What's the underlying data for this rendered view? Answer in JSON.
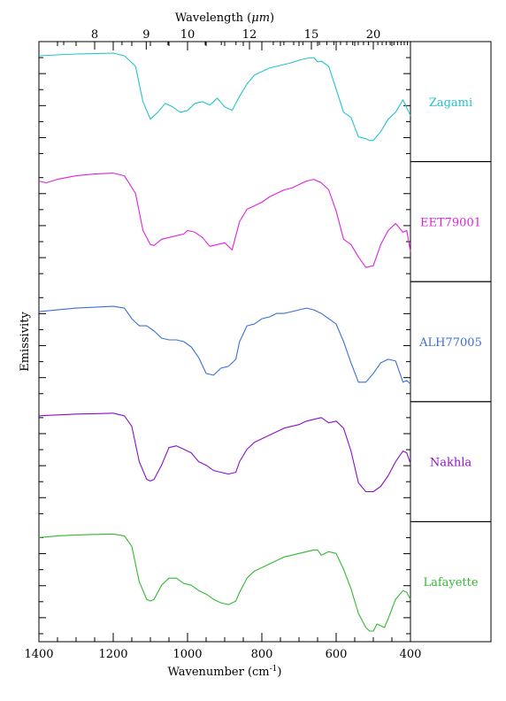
{
  "chart_data": {
    "type": "line",
    "xlabel": "Wavenumber (cm",
    "xlabel_sup": "-1",
    "xlabel_close": ")",
    "ylabel": "Emissivity",
    "top_axis_label": "Wavelength (",
    "top_axis_label_mu": "μm",
    "top_axis_label_close": ")",
    "xlim": [
      1400,
      400
    ],
    "x_ticks": [
      1400,
      1200,
      1000,
      800,
      600,
      400
    ],
    "x_tick_labels": [
      "1400",
      "1200",
      "1000",
      "800",
      "600",
      "400"
    ],
    "top_ticks_um": [
      8,
      9,
      10,
      12,
      15,
      20
    ],
    "top_tick_labels": [
      "8",
      "9",
      "10",
      "12",
      "15",
      "20"
    ],
    "series": [
      {
        "name": "Zagami",
        "color": "#22c4cc",
        "x": [
          1400,
          1350,
          1300,
          1250,
          1200,
          1170,
          1140,
          1120,
          1100,
          1080,
          1060,
          1040,
          1020,
          1000,
          980,
          960,
          940,
          920,
          900,
          880,
          860,
          840,
          820,
          800,
          780,
          760,
          740,
          720,
          700,
          680,
          660,
          650,
          640,
          620,
          600,
          580,
          560,
          540,
          520,
          510,
          500,
          480,
          460,
          440,
          420,
          400
        ],
        "y": [
          0.96,
          0.965,
          0.97,
          0.972,
          0.975,
          0.96,
          0.9,
          0.7,
          0.6,
          0.64,
          0.69,
          0.67,
          0.64,
          0.65,
          0.69,
          0.7,
          0.68,
          0.72,
          0.67,
          0.65,
          0.73,
          0.8,
          0.85,
          0.87,
          0.89,
          0.9,
          0.91,
          0.92,
          0.935,
          0.945,
          0.95,
          0.925,
          0.93,
          0.9,
          0.77,
          0.64,
          0.61,
          0.5,
          0.49,
          0.48,
          0.48,
          0.53,
          0.6,
          0.64,
          0.71,
          0.62
        ]
      },
      {
        "name": "EET79001",
        "color": "#dd22dd",
        "x": [
          1400,
          1380,
          1350,
          1300,
          1250,
          1200,
          1170,
          1140,
          1120,
          1100,
          1090,
          1070,
          1050,
          1030,
          1010,
          1000,
          980,
          960,
          940,
          920,
          900,
          880,
          860,
          840,
          820,
          800,
          780,
          760,
          740,
          720,
          700,
          680,
          660,
          640,
          620,
          600,
          580,
          560,
          540,
          520,
          500,
          480,
          460,
          440,
          420,
          410,
          400
        ],
        "y": [
          0.93,
          0.92,
          0.94,
          0.96,
          0.97,
          0.975,
          0.96,
          0.86,
          0.65,
          0.57,
          0.565,
          0.6,
          0.61,
          0.62,
          0.63,
          0.65,
          0.64,
          0.61,
          0.56,
          0.57,
          0.58,
          0.54,
          0.7,
          0.77,
          0.79,
          0.81,
          0.84,
          0.86,
          0.88,
          0.89,
          0.91,
          0.93,
          0.94,
          0.92,
          0.88,
          0.76,
          0.6,
          0.57,
          0.5,
          0.44,
          0.45,
          0.57,
          0.65,
          0.69,
          0.64,
          0.65,
          0.53
        ]
      },
      {
        "name": "ALH77005",
        "color": "#3a6fd6",
        "x": [
          1400,
          1350,
          1300,
          1250,
          1200,
          1170,
          1150,
          1130,
          1110,
          1090,
          1070,
          1050,
          1030,
          1010,
          990,
          970,
          950,
          930,
          910,
          890,
          870,
          860,
          840,
          820,
          800,
          780,
          760,
          740,
          720,
          700,
          680,
          660,
          640,
          620,
          600,
          580,
          560,
          540,
          520,
          500,
          480,
          460,
          440,
          420,
          410,
          400
        ],
        "y": [
          0.87,
          0.88,
          0.89,
          0.895,
          0.9,
          0.89,
          0.83,
          0.79,
          0.79,
          0.76,
          0.72,
          0.71,
          0.71,
          0.7,
          0.67,
          0.61,
          0.52,
          0.51,
          0.55,
          0.56,
          0.6,
          0.7,
          0.79,
          0.8,
          0.83,
          0.84,
          0.86,
          0.86,
          0.87,
          0.88,
          0.89,
          0.88,
          0.86,
          0.83,
          0.8,
          0.7,
          0.58,
          0.47,
          0.47,
          0.52,
          0.58,
          0.6,
          0.59,
          0.47,
          0.48,
          0.46
        ]
      },
      {
        "name": "Nakhla",
        "color": "#8a10c8",
        "x": [
          1400,
          1350,
          1300,
          1250,
          1200,
          1170,
          1150,
          1130,
          1110,
          1100,
          1090,
          1070,
          1050,
          1030,
          1010,
          990,
          970,
          950,
          930,
          910,
          890,
          870,
          860,
          840,
          820,
          800,
          780,
          760,
          740,
          720,
          700,
          680,
          660,
          640,
          620,
          600,
          580,
          560,
          540,
          520,
          500,
          480,
          460,
          440,
          420,
          410,
          400
        ],
        "y": [
          0.96,
          0.965,
          0.97,
          0.972,
          0.975,
          0.96,
          0.9,
          0.7,
          0.6,
          0.59,
          0.6,
          0.68,
          0.78,
          0.79,
          0.77,
          0.75,
          0.7,
          0.68,
          0.65,
          0.64,
          0.63,
          0.64,
          0.7,
          0.77,
          0.81,
          0.83,
          0.85,
          0.87,
          0.89,
          0.9,
          0.91,
          0.93,
          0.94,
          0.95,
          0.92,
          0.93,
          0.89,
          0.76,
          0.58,
          0.53,
          0.53,
          0.56,
          0.62,
          0.7,
          0.76,
          0.75,
          0.69
        ]
      },
      {
        "name": "Lafayette",
        "color": "#33b833",
        "x": [
          1400,
          1350,
          1300,
          1250,
          1200,
          1170,
          1150,
          1130,
          1110,
          1100,
          1090,
          1070,
          1050,
          1030,
          1010,
          990,
          970,
          950,
          930,
          910,
          890,
          870,
          860,
          840,
          820,
          800,
          780,
          760,
          740,
          720,
          700,
          680,
          660,
          650,
          640,
          620,
          600,
          580,
          560,
          540,
          520,
          510,
          500,
          490,
          480,
          470,
          460,
          440,
          420,
          410,
          400
        ],
        "y": [
          0.95,
          0.96,
          0.965,
          0.968,
          0.97,
          0.96,
          0.9,
          0.7,
          0.6,
          0.59,
          0.6,
          0.68,
          0.72,
          0.72,
          0.69,
          0.68,
          0.65,
          0.63,
          0.6,
          0.58,
          0.57,
          0.59,
          0.64,
          0.72,
          0.76,
          0.78,
          0.8,
          0.82,
          0.84,
          0.85,
          0.86,
          0.87,
          0.88,
          0.88,
          0.85,
          0.87,
          0.86,
          0.77,
          0.66,
          0.52,
          0.44,
          0.42,
          0.42,
          0.46,
          0.45,
          0.44,
          0.49,
          0.6,
          0.65,
          0.64,
          0.6
        ]
      }
    ]
  }
}
